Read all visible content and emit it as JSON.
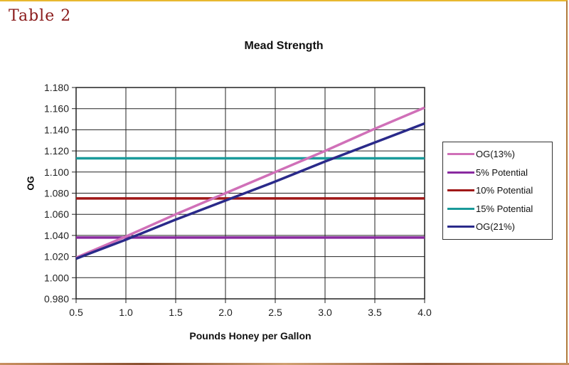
{
  "header": {
    "table_label": "Table 2"
  },
  "chart_data": {
    "type": "line",
    "title": "Mead Strength",
    "xlabel": "Pounds Honey per Gallon",
    "ylabel": "OG",
    "x": [
      0.5,
      1.0,
      1.5,
      2.0,
      2.5,
      3.0,
      3.5,
      4.0
    ],
    "x_tick_labels": [
      "0.5",
      "1.0",
      "1.5",
      "2.0",
      "2.5",
      "3.0",
      "3.5",
      "4.0"
    ],
    "y_tick_labels": [
      "1.180",
      "1.160",
      "1.140",
      "1.120",
      "1.100",
      "1.080",
      "1.060",
      "1.040",
      "1.020",
      "1.000",
      "0.980"
    ],
    "xlim": [
      0.5,
      4.0
    ],
    "ylim": [
      0.98,
      1.18
    ],
    "grid": true,
    "legend_position": "right",
    "series": [
      {
        "name": "OG(13%)",
        "color": "#d070b8",
        "values": [
          1.019,
          1.039,
          1.06,
          1.08,
          1.1,
          1.12,
          1.141,
          1.161
        ]
      },
      {
        "name": "5% Potential",
        "color": "#8a2aa0",
        "values": [
          1.038,
          1.038,
          1.038,
          1.038,
          1.038,
          1.038,
          1.038,
          1.038
        ]
      },
      {
        "name": "10% Potential",
        "color": "#a01818",
        "values": [
          1.075,
          1.075,
          1.075,
          1.075,
          1.075,
          1.075,
          1.075,
          1.075
        ]
      },
      {
        "name": "15% Potential",
        "color": "#1a9a9a",
        "values": [
          1.113,
          1.113,
          1.113,
          1.113,
          1.113,
          1.113,
          1.113,
          1.113
        ]
      },
      {
        "name": "OG(21%)",
        "color": "#2a2a8a",
        "values": [
          1.018,
          1.036,
          1.055,
          1.073,
          1.091,
          1.11,
          1.128,
          1.146
        ]
      }
    ]
  }
}
